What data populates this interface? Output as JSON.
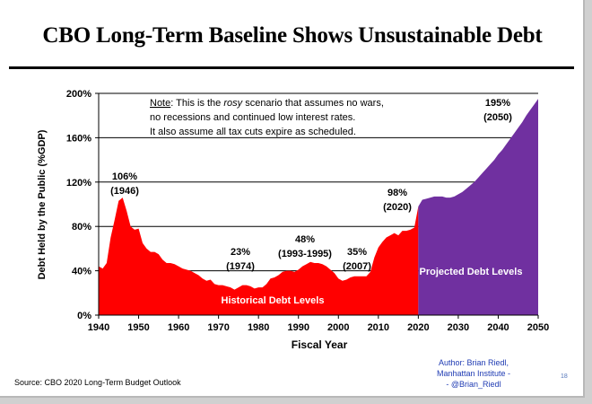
{
  "slide": {
    "title": "CBO Long-Term Baseline Shows Unsustainable Debt",
    "source": "Source: CBO 2020 Long-Term Budget Outlook",
    "author_lines": [
      "Author: Brian Riedl,",
      "Manhattan Institute -",
      "- @Brian_Riedl"
    ],
    "page_number": "18"
  },
  "chart_data": {
    "type": "area",
    "title": "CBO Long-Term Baseline Shows Unsustainable Debt",
    "xlabel": "Fiscal Year",
    "ylabel": "Debt Held by the Public (%GDP)",
    "xlim": [
      1940,
      2050
    ],
    "ylim": [
      0,
      200
    ],
    "x_ticks": [
      "1940",
      "1950",
      "1960",
      "1970",
      "1980",
      "1990",
      "2000",
      "2010",
      "2020",
      "2030",
      "2040",
      "2050"
    ],
    "y_ticks": [
      "0%",
      "40%",
      "80%",
      "120%",
      "160%",
      "200%"
    ],
    "gridlines": "horizontal",
    "note": {
      "prefix": "Note",
      "line1_a": ": This is the ",
      "line1_em": "rosy",
      "line1_b": " scenario that assumes no wars,",
      "line2": "no recessions and continued low interest rates.",
      "line3": "It also assume all tax cuts expire as scheduled."
    },
    "series": [
      {
        "name": "Historical Debt Levels",
        "color": "#ff0000",
        "x": [
          1940,
          1941,
          1942,
          1943,
          1944,
          1945,
          1946,
          1947,
          1948,
          1949,
          1950,
          1951,
          1952,
          1953,
          1954,
          1955,
          1956,
          1957,
          1958,
          1959,
          1960,
          1961,
          1962,
          1963,
          1964,
          1965,
          1966,
          1967,
          1968,
          1969,
          1970,
          1971,
          1972,
          1973,
          1974,
          1975,
          1976,
          1977,
          1978,
          1979,
          1980,
          1981,
          1982,
          1983,
          1984,
          1985,
          1986,
          1987,
          1988,
          1989,
          1990,
          1991,
          1992,
          1993,
          1994,
          1995,
          1996,
          1997,
          1998,
          1999,
          2000,
          2001,
          2002,
          2003,
          2004,
          2005,
          2006,
          2007,
          2008,
          2009,
          2010,
          2011,
          2012,
          2013,
          2014,
          2015,
          2016,
          2017,
          2018,
          2019,
          2020
        ],
        "values": [
          44,
          42,
          47,
          70,
          86,
          103,
          106,
          94,
          80,
          77,
          78,
          65,
          60,
          57,
          57,
          55,
          50,
          47,
          47,
          46,
          44,
          42,
          41,
          40,
          38,
          36,
          33,
          31,
          32,
          28,
          27,
          27,
          26,
          25,
          23,
          25,
          27,
          27,
          26,
          24,
          25,
          25,
          28,
          33,
          34,
          36,
          39,
          40,
          40,
          39,
          41,
          44,
          46,
          48,
          47,
          47,
          46,
          44,
          41,
          38,
          33,
          31,
          32,
          34,
          35,
          35,
          35,
          35,
          39,
          52,
          61,
          66,
          70,
          72,
          74,
          72,
          76,
          76,
          77,
          79,
          98
        ]
      },
      {
        "name": "Projected Debt Levels",
        "color": "#7030a0",
        "x": [
          2020,
          2021,
          2022,
          2023,
          2024,
          2025,
          2026,
          2027,
          2028,
          2029,
          2030,
          2031,
          2032,
          2033,
          2034,
          2035,
          2036,
          2037,
          2038,
          2039,
          2040,
          2041,
          2042,
          2043,
          2044,
          2045,
          2046,
          2047,
          2048,
          2049,
          2050
        ],
        "values": [
          98,
          104,
          105,
          106,
          107,
          107,
          107,
          106,
          106,
          107,
          109,
          111,
          114,
          117,
          120,
          124,
          128,
          132,
          136,
          140,
          145,
          149,
          154,
          159,
          164,
          169,
          174,
          180,
          185,
          190,
          195
        ]
      }
    ],
    "annotations": [
      {
        "value": "106%",
        "year": "(1946)"
      },
      {
        "value": "23%",
        "year": "(1974)"
      },
      {
        "value": "48%",
        "year": "(1993-1995)"
      },
      {
        "value": "35%",
        "year": "(2007)"
      },
      {
        "value": "98%",
        "year": "(2020)"
      },
      {
        "value": "195%",
        "year": "(2050)"
      }
    ]
  }
}
